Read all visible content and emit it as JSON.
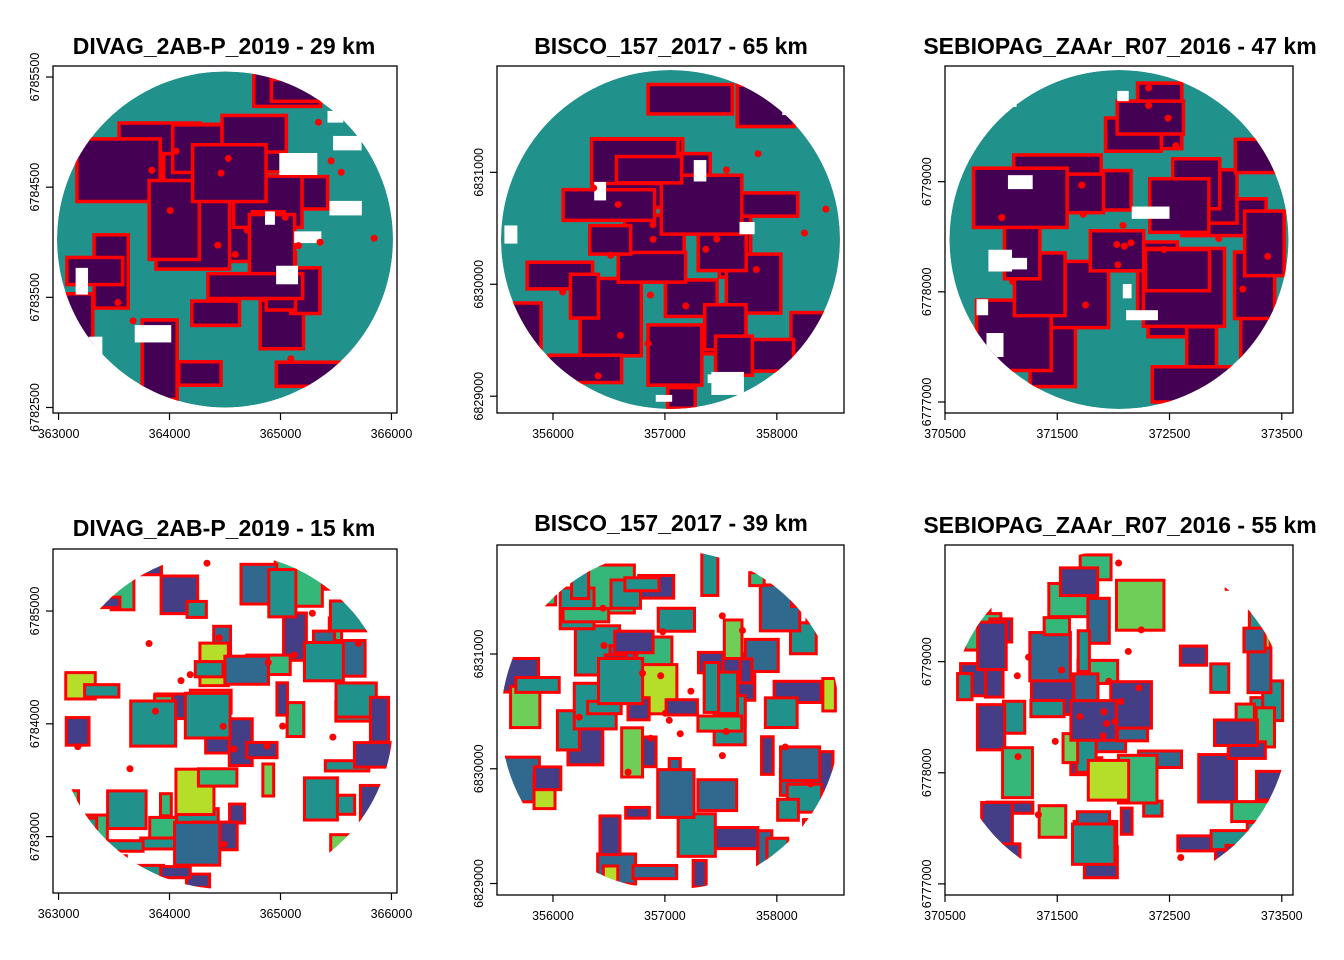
{
  "figure": {
    "layout": "2 rows x 3 columns of raster map panels"
  },
  "colors": {
    "dark_purple": "#440154",
    "indigo": "#433e85",
    "steel_blue": "#31688e",
    "teal": "#21918c",
    "green": "#35b779",
    "light_green": "#6ece58",
    "yellow_green": "#b5de2b",
    "boundary_red": "#ff0000"
  },
  "chart_data": [
    {
      "type": "raster_map",
      "title": "DIVAG_2AB-P_2019 - 29 km",
      "xlim": [
        362950,
        366050
      ],
      "ylim": [
        6782450,
        6785600
      ],
      "x_ticks": [
        "363000",
        "364000",
        "365000",
        "366000"
      ],
      "y_ticks": [
        "6782500",
        "6783500",
        "6784500",
        "6785500"
      ],
      "land_classes": [
        "dark_purple",
        "teal"
      ],
      "boundaries": "red parcel outlines"
    },
    {
      "type": "raster_map",
      "title": "BISCO_157_2017 - 65 km",
      "xlim": [
        355500,
        358600
      ],
      "ylim": [
        6828850,
        6831950
      ],
      "x_ticks": [
        "356000",
        "357000",
        "358000"
      ],
      "y_ticks": [
        "6829000",
        "6830000",
        "6831000"
      ],
      "land_classes": [
        "dark_purple",
        "teal"
      ],
      "boundaries": "red parcel outlines"
    },
    {
      "type": "raster_map",
      "title": "SEBIOPAG_ZAAr_R07_2016 - 47 km",
      "xlim": [
        370500,
        373600
      ],
      "ylim": [
        6776900,
        6780050
      ],
      "x_ticks": [
        "370500",
        "371500",
        "372500",
        "373500"
      ],
      "y_ticks": [
        "6777000",
        "6778000",
        "6779000"
      ],
      "land_classes": [
        "dark_purple",
        "teal"
      ],
      "boundaries": "red parcel outlines"
    },
    {
      "type": "raster_map",
      "title": "DIVAG_2AB-P_2019 - 15 km",
      "xlim": [
        362950,
        366050
      ],
      "ylim": [
        6782500,
        6785550
      ],
      "x_ticks": [
        "363000",
        "364000",
        "365000",
        "366000"
      ],
      "y_ticks": [
        "6783000",
        "6784000",
        "6785000"
      ],
      "land_classes": [
        "indigo",
        "steel_blue",
        "teal",
        "green",
        "light_green",
        "yellow_green"
      ],
      "boundaries": "red parcel outlines"
    },
    {
      "type": "raster_map",
      "title": "BISCO_157_2017 - 39 km",
      "xlim": [
        355500,
        358600
      ],
      "ylim": [
        6828900,
        6831950
      ],
      "x_ticks": [
        "356000",
        "357000",
        "358000"
      ],
      "y_ticks": [
        "6829000",
        "6830000",
        "6831000"
      ],
      "land_classes": [
        "indigo",
        "steel_blue",
        "teal",
        "green",
        "light_green",
        "yellow_green"
      ],
      "boundaries": "red parcel outlines"
    },
    {
      "type": "raster_map",
      "title": "SEBIOPAG_ZAAr_R07_2016 - 55 km",
      "xlim": [
        370500,
        373600
      ],
      "ylim": [
        6776900,
        6780050
      ],
      "x_ticks": [
        "370500",
        "371500",
        "372500",
        "373500"
      ],
      "y_ticks": [
        "6777000",
        "6778000",
        "6779000"
      ],
      "land_classes": [
        "indigo",
        "steel_blue",
        "teal",
        "green",
        "light_green",
        "yellow_green"
      ],
      "boundaries": "red parcel outlines"
    }
  ]
}
